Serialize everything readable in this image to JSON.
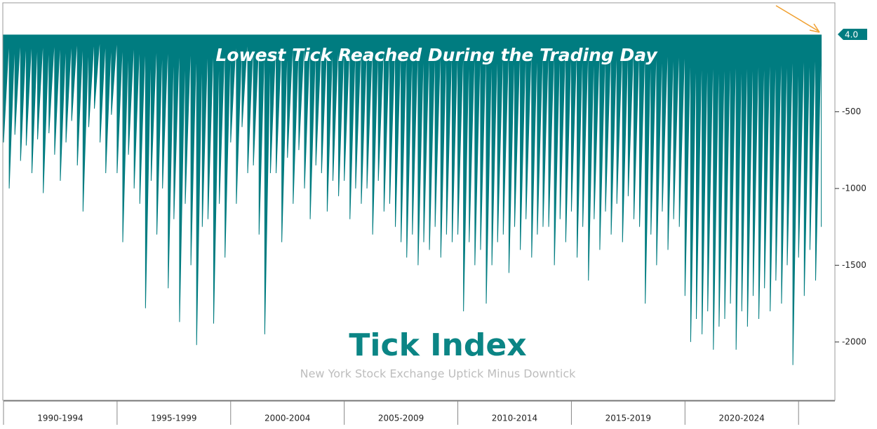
{
  "chart_data": {
    "type": "area",
    "title": "Lowest Tick Reached During the Trading Day",
    "watermark_title": "Tick Index",
    "watermark_subtitle": "New York Stock Exchange Uptick Minus Downtick",
    "color": "#007c80",
    "categories": [
      "1990-1994",
      "1995-1999",
      "2000-2004",
      "2005-2009",
      "2010-2014",
      "2015-2019",
      "2020-2024"
    ],
    "xlim": [
      1990,
      2026.6
    ],
    "xticks": [
      1990,
      1995,
      2000,
      2005,
      2010,
      2015,
      2020,
      2025
    ],
    "ylim": [
      -2375,
      205
    ],
    "yticks": [
      -2000,
      -1500,
      -1000,
      -500
    ],
    "current_value": {
      "value": 4,
      "label": "4.0"
    },
    "x": [
      1990,
      1990.25,
      1990.5,
      1990.75,
      1991,
      1991.25,
      1991.5,
      1991.75,
      1992,
      1992.25,
      1992.5,
      1992.75,
      1993,
      1993.25,
      1993.5,
      1993.75,
      1994,
      1994.25,
      1994.5,
      1994.75,
      1995,
      1995.25,
      1995.5,
      1995.75,
      1996,
      1996.25,
      1996.5,
      1996.75,
      1997,
      1997.25,
      1997.5,
      1997.75,
      1998,
      1998.25,
      1998.5,
      1998.75,
      1999,
      1999.25,
      1999.5,
      1999.75,
      2000,
      2000.25,
      2000.5,
      2000.75,
      2001,
      2001.25,
      2001.5,
      2001.75,
      2002,
      2002.25,
      2002.5,
      2002.75,
      2003,
      2003.25,
      2003.5,
      2003.75,
      2004,
      2004.25,
      2004.5,
      2004.75,
      2005,
      2005.25,
      2005.5,
      2005.75,
      2006,
      2006.25,
      2006.5,
      2006.75,
      2007,
      2007.25,
      2007.5,
      2007.75,
      2008,
      2008.25,
      2008.5,
      2008.75,
      2009,
      2009.25,
      2009.5,
      2009.75,
      2010,
      2010.25,
      2010.5,
      2010.75,
      2011,
      2011.25,
      2011.5,
      2011.75,
      2012,
      2012.25,
      2012.5,
      2012.75,
      2013,
      2013.25,
      2013.5,
      2013.75,
      2014,
      2014.25,
      2014.5,
      2014.75,
      2015,
      2015.25,
      2015.5,
      2015.75,
      2016,
      2016.25,
      2016.5,
      2016.75,
      2017,
      2017.25,
      2017.5,
      2017.75,
      2018,
      2018.25,
      2018.5,
      2018.75,
      2019,
      2019.25,
      2019.5,
      2019.75,
      2020,
      2020.25,
      2020.5,
      2020.75,
      2021,
      2021.25,
      2021.5,
      2021.75,
      2022,
      2022.25,
      2022.5,
      2022.75,
      2023,
      2023.25,
      2023.5,
      2023.75,
      2024,
      2024.25,
      2024.5,
      2024.75,
      2025,
      2025.25,
      2025.5,
      2025.75,
      2026
    ],
    "values": [
      -700,
      -1000,
      -650,
      -820,
      -720,
      -900,
      -680,
      -1030,
      -640,
      -780,
      -950,
      -700,
      -560,
      -850,
      -1150,
      -600,
      -480,
      -700,
      -900,
      -520,
      -900,
      -1350,
      -780,
      -1000,
      -1100,
      -1780,
      -950,
      -1300,
      -1000,
      -1650,
      -1200,
      -1870,
      -1100,
      -1500,
      -2020,
      -1250,
      -1200,
      -1880,
      -1100,
      -1450,
      -700,
      -1100,
      -600,
      -900,
      -850,
      -1300,
      -1950,
      -900,
      -900,
      -1350,
      -800,
      -1100,
      -750,
      -1000,
      -1200,
      -850,
      -900,
      -1150,
      -950,
      -1050,
      -950,
      -1200,
      -1000,
      -1100,
      -1000,
      -1300,
      -950,
      -1150,
      -1100,
      -1250,
      -1350,
      -1450,
      -1300,
      -1500,
      -1350,
      -1400,
      -1250,
      -1450,
      -1300,
      -1350,
      -1300,
      -1800,
      -1350,
      -1500,
      -1400,
      -1750,
      -1500,
      -1350,
      -1300,
      -1550,
      -1250,
      -1400,
      -1200,
      -1450,
      -1300,
      -1250,
      -1250,
      -1500,
      -1200,
      -1350,
      -1150,
      -1450,
      -1250,
      -1600,
      -1200,
      -1400,
      -1150,
      -1300,
      -1100,
      -1350,
      -1050,
      -1200,
      -1250,
      -1750,
      -1300,
      -1500,
      -1150,
      -1400,
      -1200,
      -1250,
      -1700,
      -2000,
      -1850,
      -1950,
      -1800,
      -2050,
      -1900,
      -1850,
      -1750,
      -2050,
      -1800,
      -1900,
      -1700,
      -1850,
      -1650,
      -1800,
      -1600,
      -1750,
      -1500,
      -2150,
      -1450,
      -1700,
      -1400,
      -1600,
      -1250
    ]
  }
}
